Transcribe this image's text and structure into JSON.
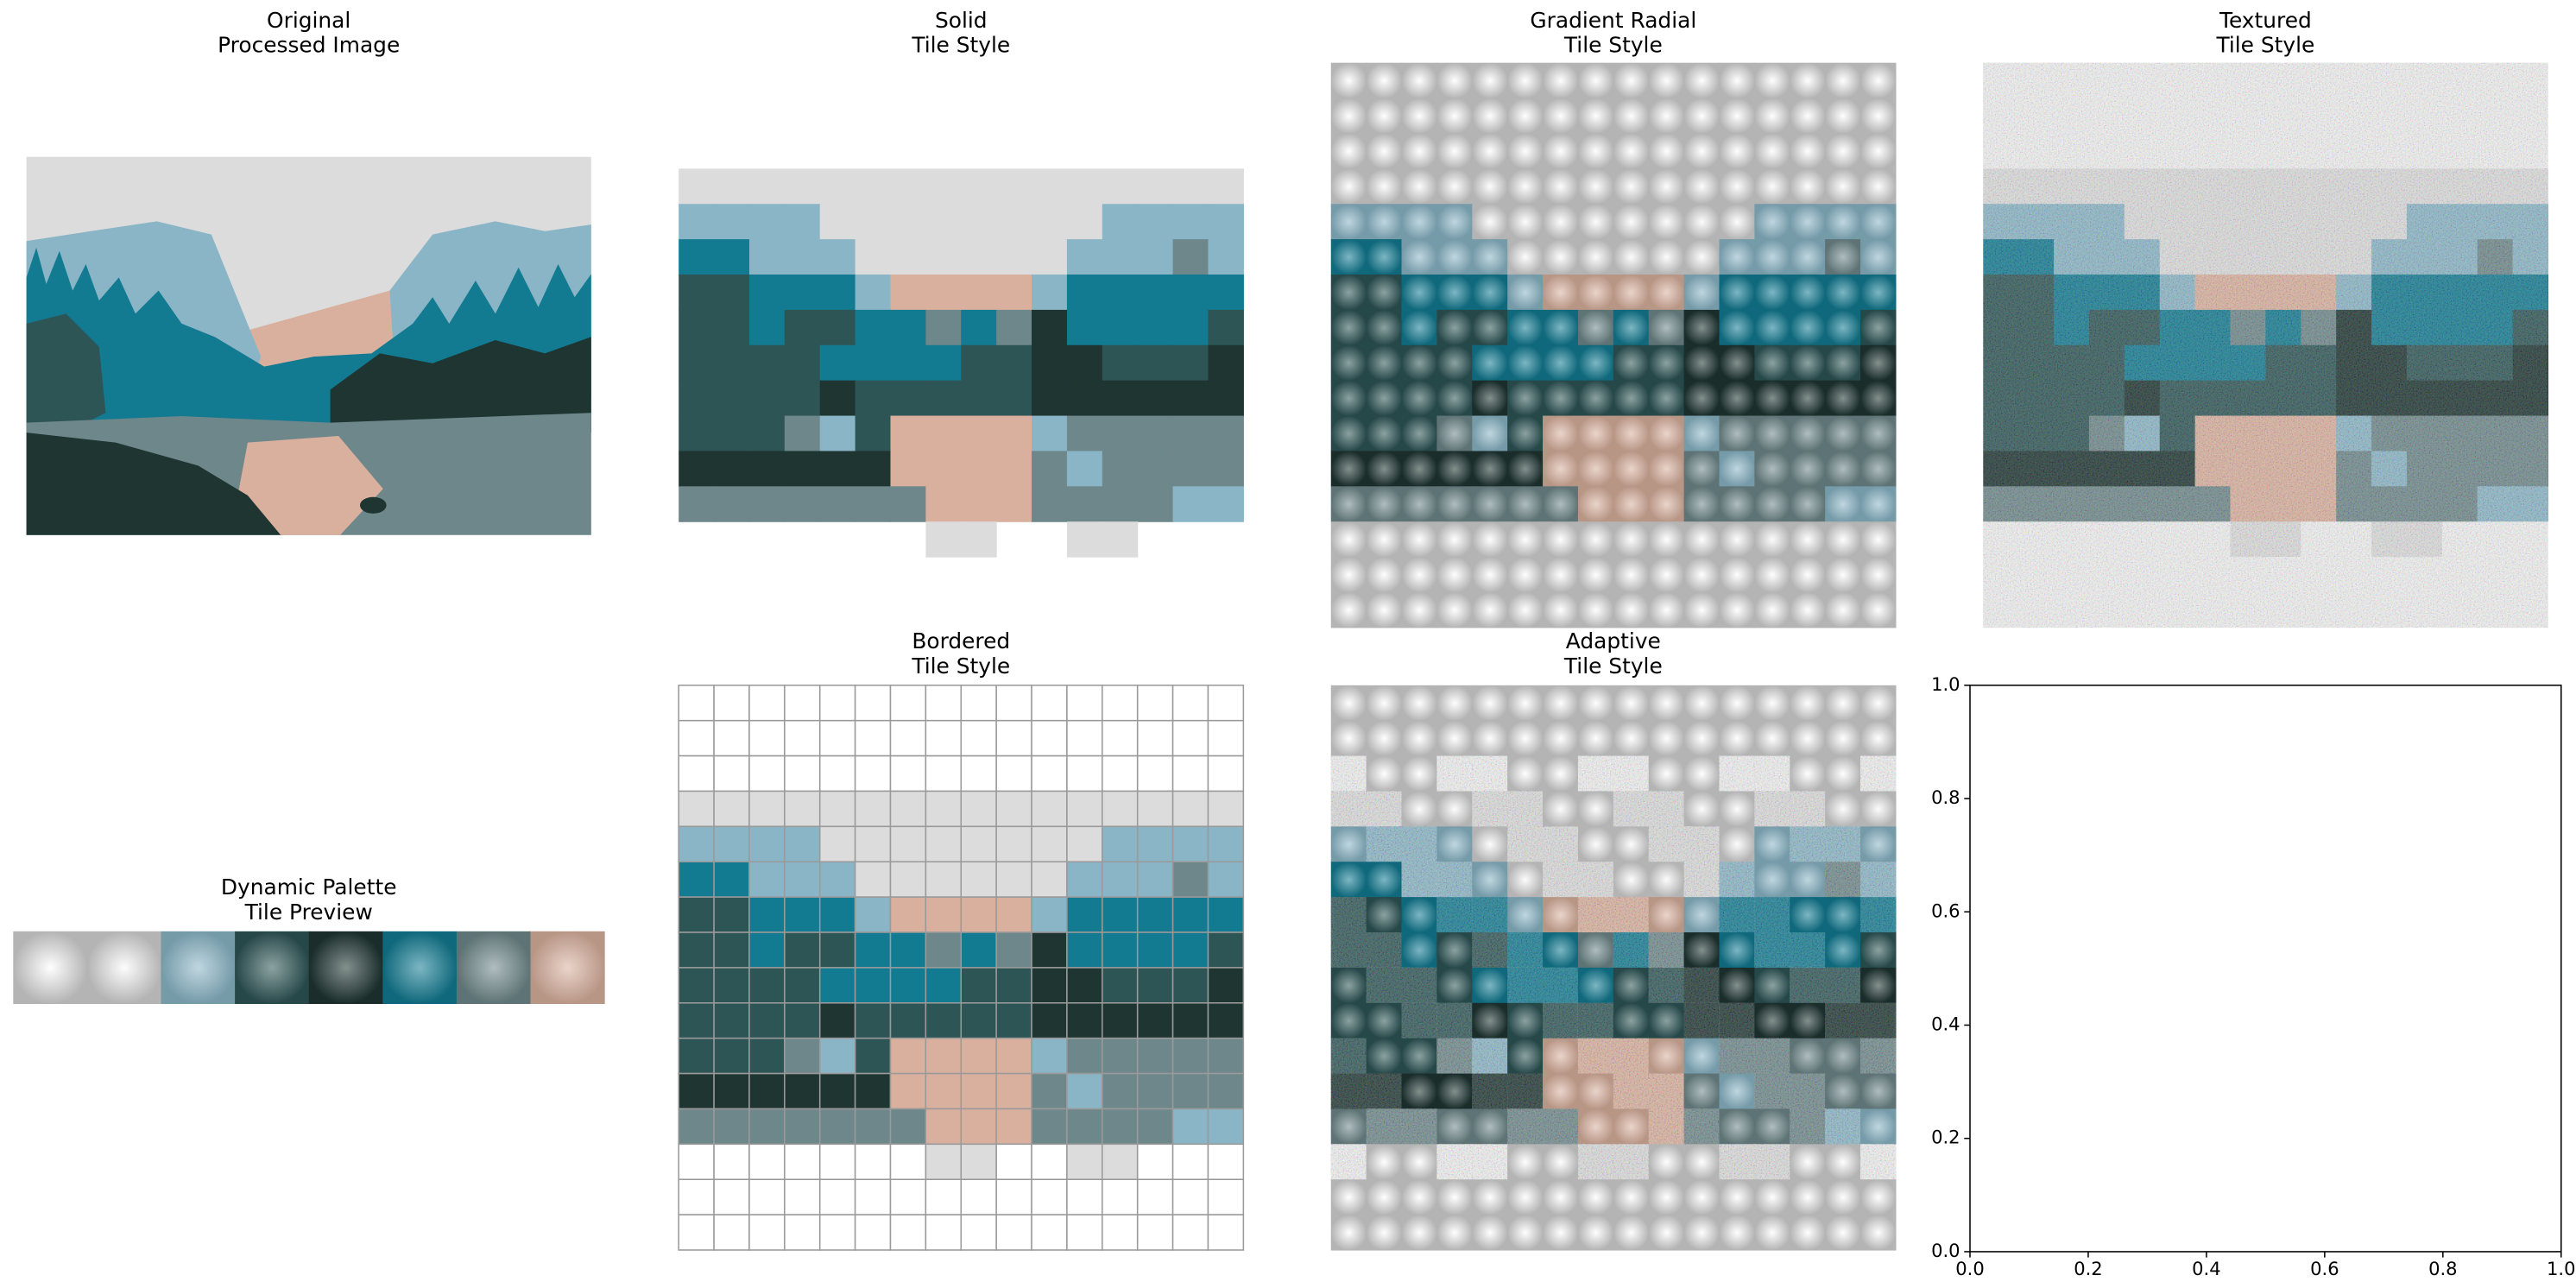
{
  "panels": [
    {
      "title": [
        "Original",
        "Processed Image"
      ]
    },
    {
      "title": [
        "Solid",
        "Tile Style"
      ]
    },
    {
      "title": [
        "Gradient Radial",
        "Tile Style"
      ]
    },
    {
      "title": [
        "Textured",
        "Tile Style"
      ]
    },
    {
      "title": [
        "Bordered",
        "Tile Style"
      ]
    },
    {
      "title": [
        "Adaptive",
        "Tile Style"
      ]
    }
  ],
  "palette_preview": {
    "title": [
      "Dynamic Palette",
      "Tile Preview"
    ],
    "colors": [
      "#f4f4f4",
      "#dcdcdc",
      "#8ab5c6",
      "#2e5556",
      "#1e3532",
      "#127a91",
      "#6e878a",
      "#d9b09e"
    ]
  },
  "empty_axes": {
    "xlim": [
      0,
      1
    ],
    "ylim": [
      0,
      1
    ],
    "xticks": [
      {
        "value": 0,
        "label": "0.0"
      },
      {
        "value": 0.2,
        "label": "0.2"
      },
      {
        "value": 0.4,
        "label": "0.4"
      },
      {
        "value": 0.6,
        "label": "0.6"
      },
      {
        "value": 0.8,
        "label": "0.8"
      },
      {
        "value": 1,
        "label": "1.0"
      }
    ],
    "yticks": [
      {
        "value": 0,
        "label": "0.0"
      },
      {
        "value": 0.2,
        "label": "0.2"
      },
      {
        "value": 0.4,
        "label": "0.4"
      },
      {
        "value": 0.6,
        "label": "0.6"
      },
      {
        "value": 0.8,
        "label": "0.8"
      },
      {
        "value": 1,
        "label": "1.0"
      }
    ]
  }
}
